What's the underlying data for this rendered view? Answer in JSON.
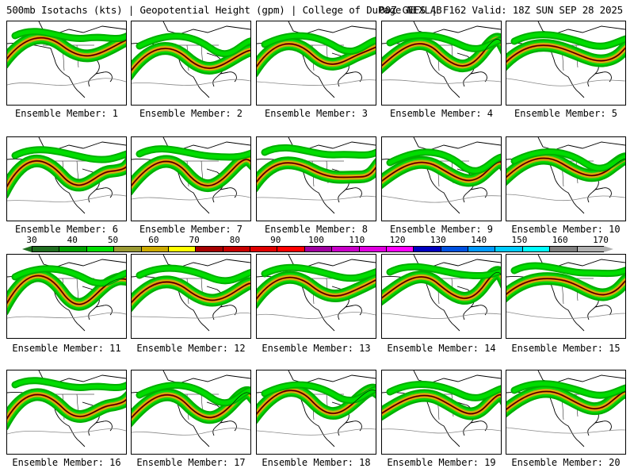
{
  "header": {
    "left_title": "500mb Isotachs (kts) | Geopotential Height (gpm) | College of DuPage NEXLAB",
    "right_title": "00Z GEFS | F162 Valid: 18Z SUN SEP 28 2025"
  },
  "panels": [
    {
      "label": "Ensemble Member: 1"
    },
    {
      "label": "Ensemble Member: 2"
    },
    {
      "label": "Ensemble Member: 3"
    },
    {
      "label": "Ensemble Member: 4"
    },
    {
      "label": "Ensemble Member: 5"
    },
    {
      "label": "Ensemble Member: 6"
    },
    {
      "label": "Ensemble Member: 7"
    },
    {
      "label": "Ensemble Member: 8"
    },
    {
      "label": "Ensemble Member: 9"
    },
    {
      "label": "Ensemble Member: 10"
    },
    {
      "label": "Ensemble Member: 11"
    },
    {
      "label": "Ensemble Member: 12"
    },
    {
      "label": "Ensemble Member: 13"
    },
    {
      "label": "Ensemble Member: 14"
    },
    {
      "label": "Ensemble Member: 15"
    },
    {
      "label": "Ensemble Member: 16"
    },
    {
      "label": "Ensemble Member: 17"
    },
    {
      "label": "Ensemble Member: 18"
    },
    {
      "label": "Ensemble Member: 19"
    },
    {
      "label": "Ensemble Member: 20"
    }
  ],
  "colorbar": {
    "ticks": [
      "30",
      "40",
      "50",
      "60",
      "70",
      "80",
      "90",
      "100",
      "110",
      "120",
      "130",
      "140",
      "150",
      "160",
      "170"
    ],
    "colors": [
      "#1f6e1f",
      "#00a000",
      "#00dd00",
      "#9a9a33",
      "#ccaa00",
      "#ffff00",
      "#a50000",
      "#c80000",
      "#e00000",
      "#ff0000",
      "#a000a0",
      "#c800c8",
      "#e000e0",
      "#ff00ff",
      "#0000c0",
      "#0050e0",
      "#0099ff",
      "#00ccff",
      "#00ffff",
      "#808080",
      "#b0b0b0"
    ]
  }
}
